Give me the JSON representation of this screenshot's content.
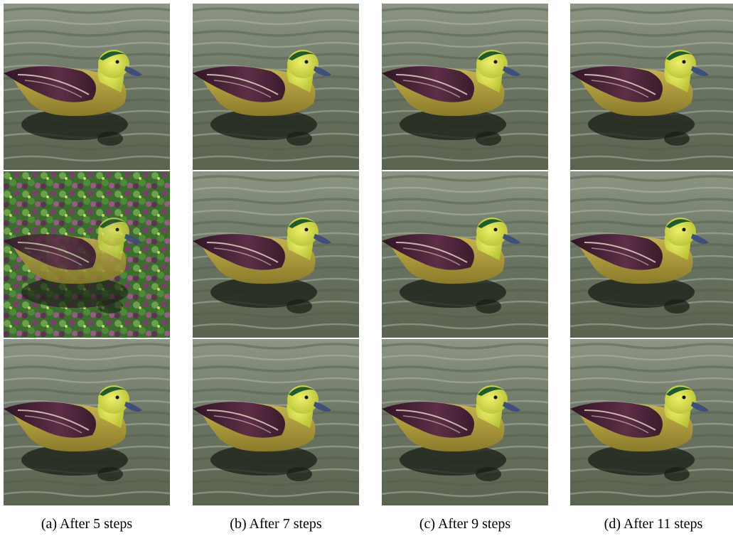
{
  "columns": [
    {
      "caption": "(a) After 5 steps"
    },
    {
      "caption": "(b) After 7 steps"
    },
    {
      "caption": "(c) After 9 steps"
    },
    {
      "caption": "(d) After 11 steps"
    }
  ],
  "rows": 3,
  "colors": {
    "water_dark": "#4f5a4a",
    "water_mid": "#7a8472",
    "water_light": "#b9c0b3",
    "mallard_green": "#1f5b2e",
    "head_yellow": "#dbe34a",
    "bill_blue": "#3d4f7a",
    "wing_purple": "#4a2438",
    "body_gold": "#b09a3c",
    "leaf_green": "#3e7a32",
    "leaf_purple": "#7a3f6a"
  },
  "tiles": [
    [
      "water",
      "water",
      "water",
      "water"
    ],
    [
      "foliage",
      "water",
      "water",
      "water"
    ],
    [
      "water",
      "water",
      "water",
      "water"
    ]
  ]
}
